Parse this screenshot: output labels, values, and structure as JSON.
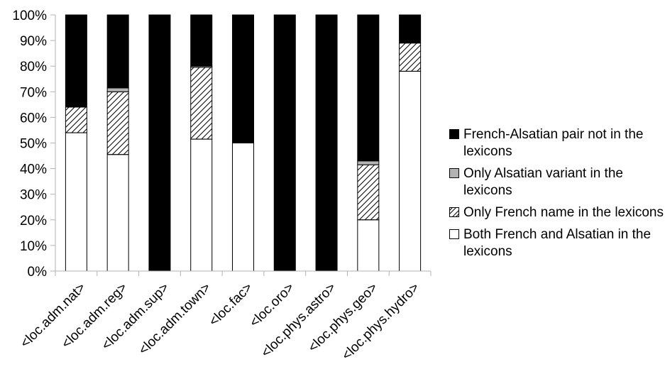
{
  "chart_data": {
    "type": "bar",
    "stacked": true,
    "percent": true,
    "title": "",
    "xlabel": "",
    "ylabel": "",
    "ylim": [
      0,
      100
    ],
    "yticks": [
      "0%",
      "10%",
      "20%",
      "30%",
      "40%",
      "50%",
      "60%",
      "70%",
      "80%",
      "90%",
      "100%"
    ],
    "grid": false,
    "legend_position": "right",
    "categories": [
      "<loc.adm.nat>",
      "<loc.adm.reg>",
      "<loc.adm.sup>",
      "<loc.adm.town>",
      "<loc.fac>",
      "<loc.oro>",
      "<loc.phys.astro>",
      "<loc.phys.geo>",
      "<loc.phys.hydro>"
    ],
    "series": [
      {
        "name": "Both French and Alsatian in the lexicons",
        "fill": "#ffffff",
        "pattern": "none",
        "values": [
          54,
          45.5,
          0,
          51.5,
          50,
          0,
          0,
          20,
          78
        ]
      },
      {
        "name": "Only French name in the lexicons",
        "fill": "#ffffff",
        "pattern": "hatch",
        "values": [
          10,
          24.5,
          0,
          28,
          0,
          0,
          0,
          21.5,
          11
        ]
      },
      {
        "name": "Only Alsatian variant in the lexicons",
        "fill": "#b3b3b3",
        "pattern": "none",
        "values": [
          0,
          1.5,
          0,
          0.5,
          0,
          0,
          0,
          1.5,
          0
        ]
      },
      {
        "name": "French-Alsatian pair not in the lexicons",
        "fill": "#000000",
        "pattern": "none",
        "values": [
          36,
          28.5,
          100,
          20,
          50,
          100,
          100,
          57,
          11
        ]
      }
    ],
    "legend_order": [
      "French-Alsatian pair not in the lexicons",
      "Only Alsatian variant in the lexicons",
      "Only French name in the lexicons",
      "Both French and Alsatian in the lexicons"
    ]
  }
}
